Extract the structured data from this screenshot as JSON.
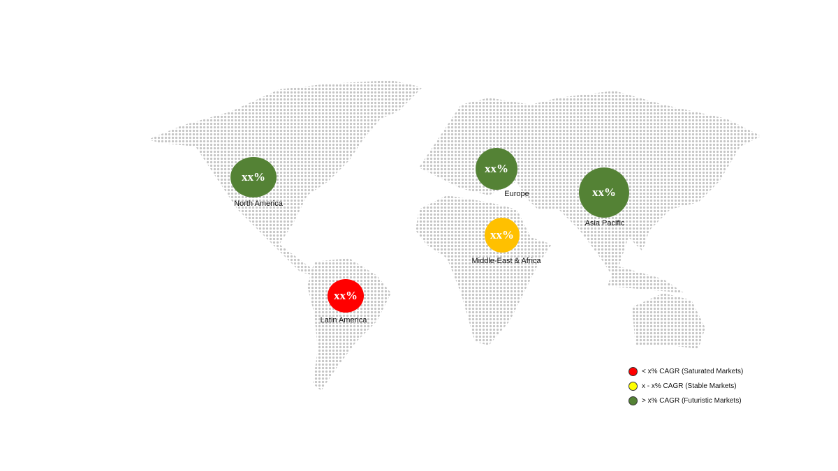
{
  "regions": [
    {
      "name": "North America",
      "value": "xx%",
      "color": "#548235"
    },
    {
      "name": "Europe",
      "value": "xx%",
      "color": "#548235"
    },
    {
      "name": "Asia Pacific",
      "value": "xx%",
      "color": "#548235"
    },
    {
      "name": "Middle-East & Africa",
      "value": "xx%",
      "color": "#ffc000"
    },
    {
      "name": "Latin America",
      "value": "xx%",
      "color": "#ff0000"
    }
  ],
  "legend": [
    {
      "label": "< x% CAGR (Saturated Markets)",
      "color": "#ff0000"
    },
    {
      "label": "x - x% CAGR (Stable Markets)",
      "color": "#ffff00"
    },
    {
      "label": "> x% CAGR (Futuristic Markets)",
      "color": "#548235"
    }
  ],
  "map_dot_color": "#c4c4c4"
}
